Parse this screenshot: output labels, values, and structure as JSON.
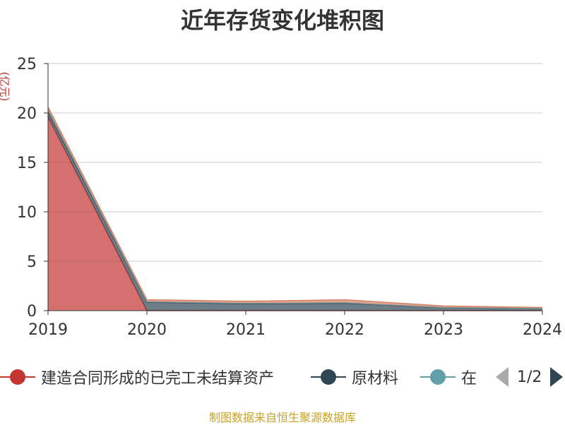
{
  "chart_data": {
    "type": "area",
    "stacked": true,
    "title": "近年存货变化堆积图",
    "ylabel": "(亿元)",
    "xlabel": "",
    "x": [
      "2019",
      "2020",
      "2021",
      "2022",
      "2023",
      "2024"
    ],
    "ylim": [
      0,
      25
    ],
    "yticks": [
      0,
      5,
      10,
      15,
      20,
      25
    ],
    "grid": true,
    "series": [
      {
        "name": "建造合同形成的已完工未结算资产",
        "color": "#c23531",
        "values": [
          19.6,
          0,
          0,
          0,
          0,
          0
        ]
      },
      {
        "name": "原材料",
        "color": "#2f4554",
        "values": [
          0.5,
          0.85,
          0.7,
          0.75,
          0.3,
          0.2
        ]
      },
      {
        "name": "在",
        "color": "#61a0a8",
        "values": [
          0.2,
          0.05,
          0.05,
          0.05,
          0.02,
          0.02
        ]
      },
      {
        "name": "",
        "color": "#d48265",
        "values": [
          0.3,
          0.2,
          0.2,
          0.3,
          0.15,
          0.1
        ]
      }
    ]
  },
  "legend": {
    "items": [
      {
        "label": "建造合同形成的已完工未结算资产",
        "color": "#c23531"
      },
      {
        "label": "原材料",
        "color": "#2f4554"
      },
      {
        "label": "在",
        "color": "#61a0a8"
      }
    ],
    "page": "1/2"
  },
  "source": "制图数据来自恒生聚源数据库"
}
